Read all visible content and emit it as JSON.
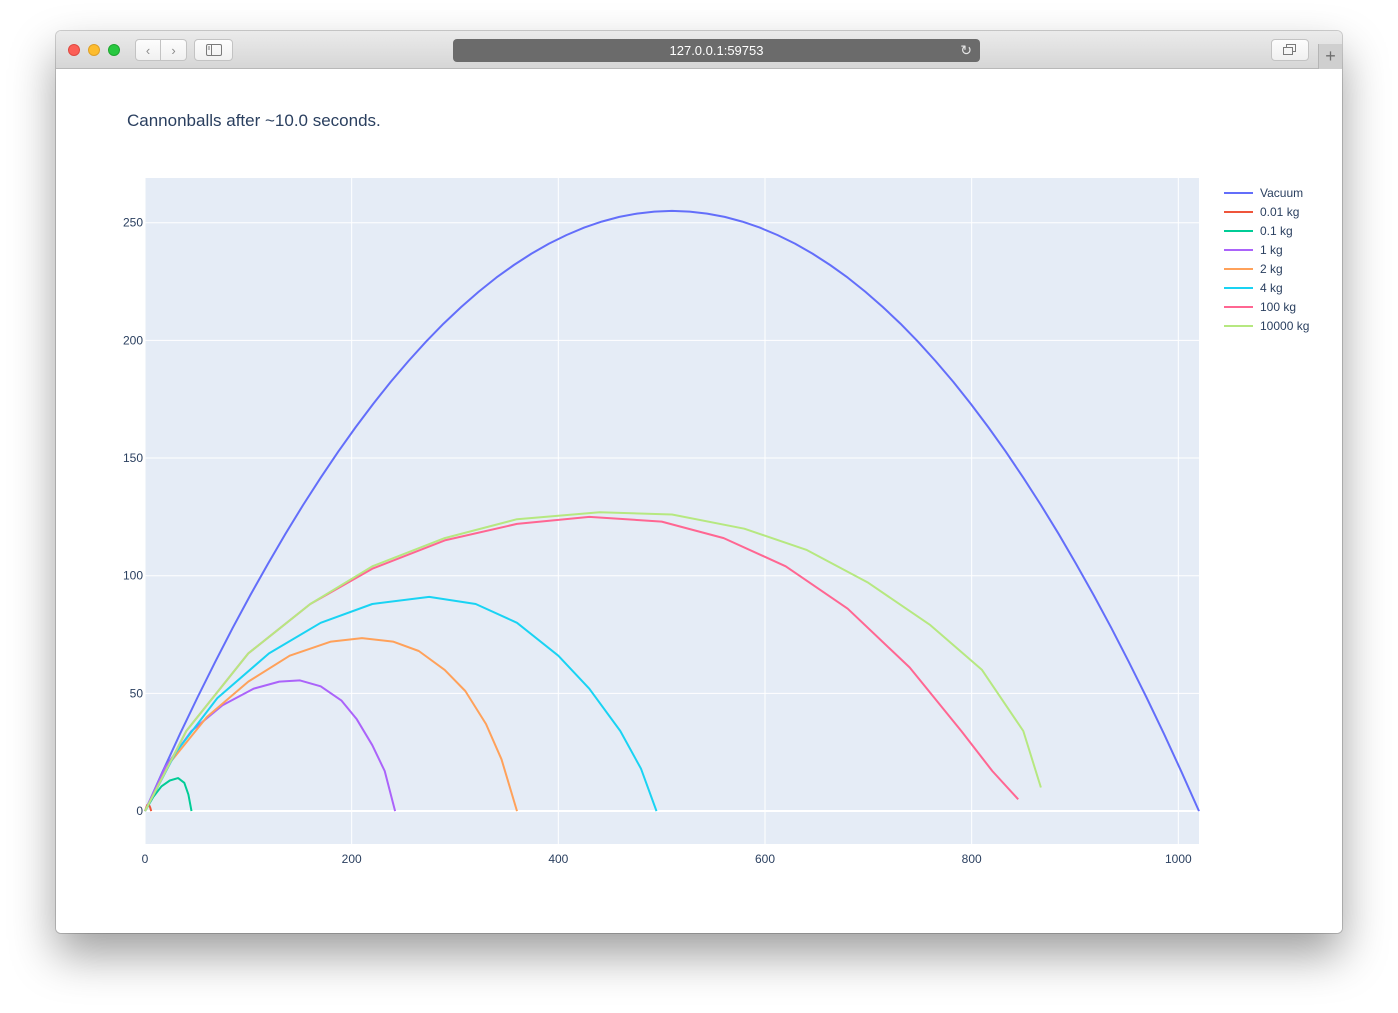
{
  "browser": {
    "url": "127.0.0.1:59753",
    "back_icon": "‹",
    "forward_icon": "›",
    "reload_icon": "↻",
    "new_tab_icon": "+"
  },
  "chart_data": {
    "type": "line",
    "title": "Cannonballs after ~10.0 seconds.",
    "xlabel": "",
    "ylabel": "",
    "xlim": [
      0,
      1020
    ],
    "ylim": [
      -14,
      269
    ],
    "xticks": [
      0,
      200,
      400,
      600,
      800,
      1000
    ],
    "yticks": [
      0,
      50,
      100,
      150,
      200,
      250
    ],
    "grid": true,
    "legend_position": "right",
    "plot_bgcolor": "#e5ecf6",
    "series": [
      {
        "name": "Vacuum",
        "color": "#636efa",
        "kind": "parabola",
        "range": 1020,
        "peak_x": 510,
        "peak_y": 255
      },
      {
        "name": "0.01 kg",
        "color": "#ef553b",
        "kind": "points",
        "points": [
          [
            0,
            0
          ],
          [
            2,
            2.5
          ],
          [
            3.5,
            3
          ],
          [
            5,
            1.5
          ],
          [
            6,
            0
          ]
        ]
      },
      {
        "name": "0.1 kg",
        "color": "#00cc96",
        "kind": "points",
        "points": [
          [
            0,
            0
          ],
          [
            8,
            6
          ],
          [
            16,
            10.5
          ],
          [
            24,
            13
          ],
          [
            32,
            14
          ],
          [
            38,
            12
          ],
          [
            42,
            7
          ],
          [
            45,
            0
          ]
        ]
      },
      {
        "name": "1 kg",
        "color": "#ab63fa",
        "kind": "points",
        "points": [
          [
            0,
            0
          ],
          [
            20,
            19
          ],
          [
            45,
            34
          ],
          [
            75,
            45
          ],
          [
            105,
            52
          ],
          [
            130,
            55
          ],
          [
            150,
            55.5
          ],
          [
            170,
            53
          ],
          [
            190,
            47
          ],
          [
            205,
            39
          ],
          [
            220,
            28
          ],
          [
            232,
            17
          ],
          [
            242,
            0
          ]
        ]
      },
      {
        "name": "2 kg",
        "color": "#ffa15a",
        "kind": "points",
        "points": [
          [
            0,
            0
          ],
          [
            25,
            21
          ],
          [
            60,
            40
          ],
          [
            100,
            55
          ],
          [
            140,
            66
          ],
          [
            180,
            72
          ],
          [
            210,
            73.5
          ],
          [
            240,
            72
          ],
          [
            265,
            68
          ],
          [
            290,
            60
          ],
          [
            310,
            51
          ],
          [
            330,
            37
          ],
          [
            345,
            22
          ],
          [
            360,
            0
          ]
        ]
      },
      {
        "name": "4 kg",
        "color": "#19d3f3",
        "kind": "points",
        "points": [
          [
            0,
            0
          ],
          [
            30,
            25
          ],
          [
            70,
            48
          ],
          [
            120,
            67
          ],
          [
            170,
            80
          ],
          [
            220,
            88
          ],
          [
            275,
            91
          ],
          [
            320,
            88
          ],
          [
            360,
            80
          ],
          [
            400,
            66
          ],
          [
            430,
            52
          ],
          [
            460,
            34
          ],
          [
            480,
            18
          ],
          [
            495,
            0
          ]
        ]
      },
      {
        "name": "100 kg",
        "color": "#ff6692",
        "kind": "points",
        "points": [
          [
            0,
            0
          ],
          [
            40,
            34
          ],
          [
            100,
            67
          ],
          [
            160,
            88
          ],
          [
            220,
            103
          ],
          [
            290,
            115
          ],
          [
            360,
            122
          ],
          [
            430,
            125
          ],
          [
            500,
            123
          ],
          [
            560,
            116
          ],
          [
            620,
            104
          ],
          [
            680,
            86
          ],
          [
            740,
            61
          ],
          [
            790,
            34
          ],
          [
            820,
            17
          ],
          [
            845,
            5
          ]
        ]
      },
      {
        "name": "10000 kg",
        "color": "#b6e880",
        "kind": "points",
        "points": [
          [
            0,
            0
          ],
          [
            40,
            34
          ],
          [
            100,
            67
          ],
          [
            160,
            88
          ],
          [
            220,
            104
          ],
          [
            290,
            116
          ],
          [
            360,
            124
          ],
          [
            440,
            127
          ],
          [
            510,
            126
          ],
          [
            580,
            120
          ],
          [
            640,
            111
          ],
          [
            700,
            97
          ],
          [
            760,
            79
          ],
          [
            810,
            60
          ],
          [
            850,
            34
          ],
          [
            867,
            10
          ]
        ]
      }
    ]
  }
}
